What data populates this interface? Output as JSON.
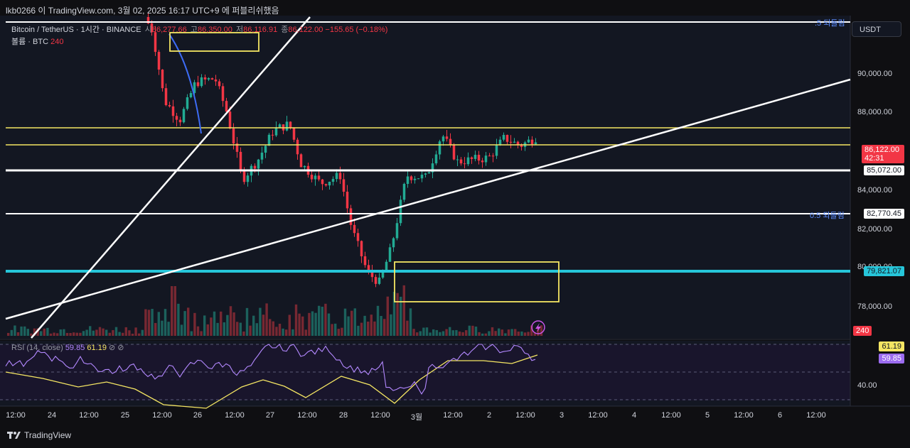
{
  "header": {
    "title": "lkb0266 이 TradingView.com, 3월 02, 2025 16:17 UTC+9 에 퍼블리쉬했음"
  },
  "legend": {
    "symbol": "Bitcoin / TetherUS · 1시간 · BINANCE",
    "o_key": "시",
    "o_val": "86,277.66",
    "h_key": "고",
    "h_val": "86,350.00",
    "l_key": "저",
    "l_val": "86,116.91",
    "c_key": "종",
    "c_val": "86,122.00",
    "change": "−155.65 (−0.18%)",
    "volume_label": "볼륨 · BTC",
    "volume_val": "240"
  },
  "currency_button": "USDT",
  "price_axis": {
    "ticks": [
      "90,000.00",
      "88,000.00",
      "84,000.00",
      "82,000.00",
      "80,000.00",
      "78,000.00"
    ],
    "current_price": "86,122.00",
    "countdown": "42:31",
    "level_85072": "85,072.00",
    "level_82770": "82,770.45",
    "level_79821": "79,821.07",
    "volume_tag": "240",
    "fib_top": ".5 되돌림",
    "fib_mid": "0.5 되돌림"
  },
  "rsi": {
    "label": "RSI (14, close)",
    "val1": "59.85",
    "val2": "61.19",
    "tag_ma": "61.19",
    "tag_rsi": "59.85",
    "tick_40": "40.00"
  },
  "time_axis": [
    "12:00",
    "24",
    "12:00",
    "25",
    "12:00",
    "26",
    "12:00",
    "27",
    "12:00",
    "28",
    "12:00",
    "3월",
    "12:00",
    "2",
    "12:00",
    "3",
    "12:00",
    "4",
    "12:00",
    "5",
    "12:00",
    "6",
    "12:00"
  ],
  "footer": {
    "brand": "TradingView"
  },
  "colors": {
    "up": "#22ab94",
    "down": "#f23645",
    "cyan": "#26c6da",
    "yellow": "#f5e663",
    "rsi": "#b388ff"
  },
  "chart_data": {
    "type": "candlestick",
    "symbol": "Bitcoin / TetherUS",
    "timeframe": "1시간",
    "y_range": [
      76500,
      92200
    ],
    "horizontal_levels": [
      {
        "price": 87300,
        "color": "yellow"
      },
      {
        "price": 86350,
        "color": "yellow"
      },
      {
        "price": 85072,
        "color": "white",
        "label": "85,072.00"
      },
      {
        "price": 82770.45,
        "color": "white",
        "label": "82,770.45"
      },
      {
        "price": 79821.07,
        "color": "cyan",
        "label": "79,821.07"
      }
    ],
    "anchors": [
      {
        "t": 0.0,
        "price": 92200
      },
      {
        "t": 0.02,
        "price": 91500
      },
      {
        "t": 0.05,
        "price": 88000
      },
      {
        "t": 0.09,
        "price": 87000
      },
      {
        "t": 0.13,
        "price": 88900
      },
      {
        "t": 0.18,
        "price": 89100
      },
      {
        "t": 0.21,
        "price": 87400
      },
      {
        "t": 0.25,
        "price": 84000
      },
      {
        "t": 0.29,
        "price": 85000
      },
      {
        "t": 0.33,
        "price": 86500
      },
      {
        "t": 0.37,
        "price": 86800
      },
      {
        "t": 0.4,
        "price": 84800
      },
      {
        "t": 0.45,
        "price": 83800
      },
      {
        "t": 0.5,
        "price": 84200
      },
      {
        "t": 0.53,
        "price": 81500
      },
      {
        "t": 0.57,
        "price": 79300
      },
      {
        "t": 0.6,
        "price": 78800
      },
      {
        "t": 0.63,
        "price": 80500
      },
      {
        "t": 0.67,
        "price": 84200
      },
      {
        "t": 0.72,
        "price": 84100
      },
      {
        "t": 0.76,
        "price": 86300
      },
      {
        "t": 0.8,
        "price": 84900
      },
      {
        "t": 0.84,
        "price": 85000
      },
      {
        "t": 0.88,
        "price": 85100
      },
      {
        "t": 0.92,
        "price": 86100
      },
      {
        "t": 0.96,
        "price": 85700
      },
      {
        "t": 1.0,
        "price": 86122
      }
    ]
  }
}
